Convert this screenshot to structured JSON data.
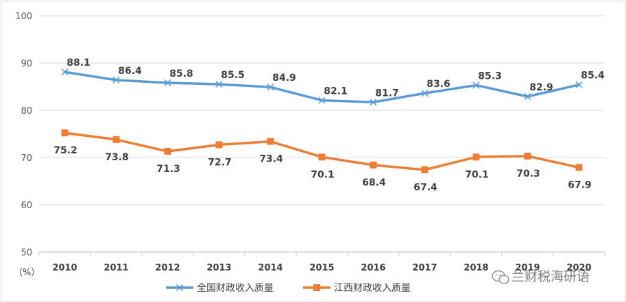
{
  "chart_data": {
    "type": "line",
    "categories": [
      "2010",
      "2011",
      "2012",
      "2013",
      "2014",
      "2015",
      "2016",
      "2017",
      "2018",
      "2019",
      "2020"
    ],
    "ylim": [
      50,
      100
    ],
    "yticks": [
      50,
      60,
      70,
      80,
      90,
      100
    ],
    "y_unit": "（%）",
    "grid": "horizontal",
    "legend_position": "bottom",
    "series": [
      {
        "name": "全国财政收入质量",
        "color": "#5b9bd5",
        "marker": "x",
        "values": [
          88.1,
          86.4,
          85.8,
          85.5,
          84.9,
          82.1,
          81.7,
          83.6,
          85.3,
          82.9,
          85.4
        ],
        "label_position": "above"
      },
      {
        "name": "江西财政收入质量",
        "color": "#ed7d31",
        "marker": "square",
        "values": [
          75.2,
          73.8,
          71.3,
          72.7,
          73.4,
          70.1,
          68.4,
          67.4,
          70.1,
          70.3,
          67.9
        ],
        "label_position": "below"
      }
    ]
  },
  "watermark": {
    "text": "兰财税海研语",
    "icon": "wechat-icon"
  }
}
